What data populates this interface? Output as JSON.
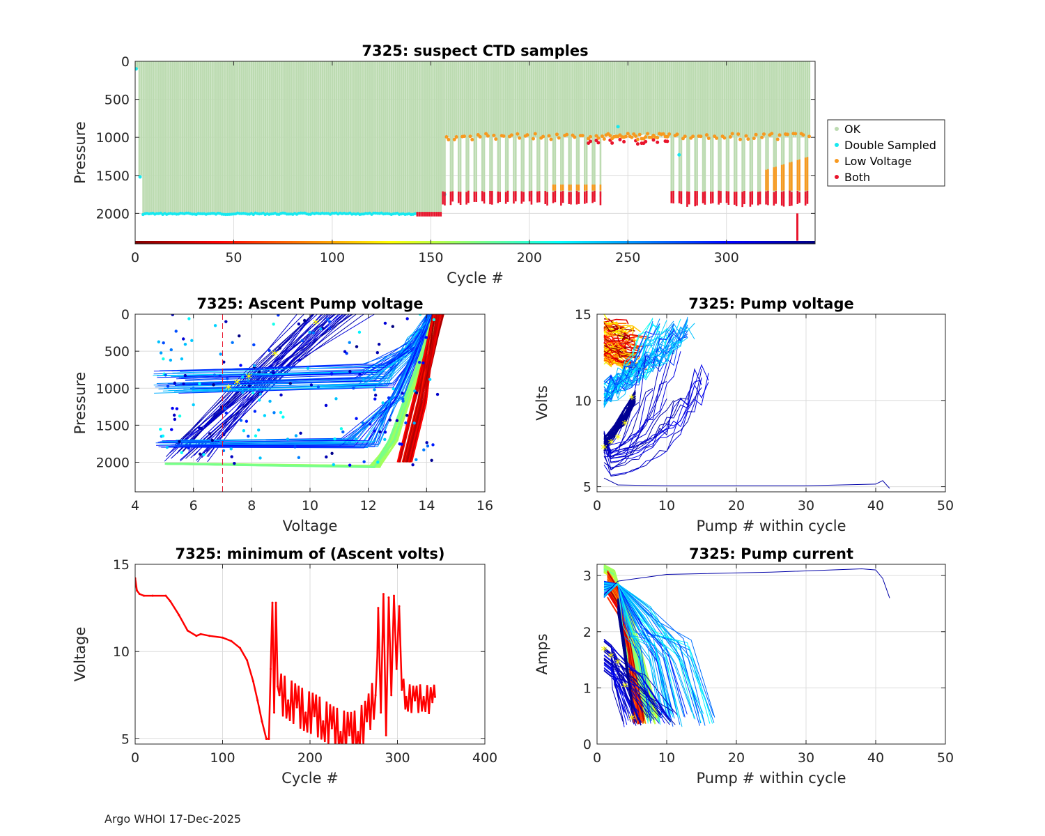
{
  "footer": "Argo WHOI 17-Dec-2025",
  "chart_data": [
    {
      "type": "scatter",
      "title": "7325: suspect CTD samples",
      "xlabel": "Cycle #",
      "ylabel": "Pressure",
      "xlim": [
        0,
        345
      ],
      "ylim": [
        2400,
        0
      ],
      "xticks": [
        0,
        50,
        100,
        150,
        200,
        250,
        300
      ],
      "yticks": [
        0,
        500,
        1000,
        1500,
        2000
      ],
      "legend": {
        "placement": "right",
        "entries": [
          "OK",
          "Double Sampled",
          "Low Voltage",
          "Both"
        ]
      },
      "colors": {
        "ok": "#bcdbb1",
        "double_sampled": "#18e8ef",
        "low_voltage": "#f7991f",
        "both": "#e8142c"
      },
      "profile_depth_segments": [
        {
          "cycles": [
            0,
            155
          ],
          "max_pressure": 2000,
          "bottom_flag": "Double Sampled"
        },
        {
          "cycles": [
            143,
            155
          ],
          "max_pressure": 2010,
          "bottom_flag": "Both"
        },
        {
          "cycles": [
            156,
            236
          ],
          "max_pressure": 1780,
          "bottom_flag": "Both",
          "low_voltage_top": 1000
        },
        {
          "cycles": [
            237,
            269
          ],
          "max_pressure": 1000,
          "bottom_flag": "Both",
          "low_voltage_top": 900
        },
        {
          "cycles": [
            270,
            342
          ],
          "max_pressure": 1800,
          "bottom_flag": "Both",
          "low_voltage_top": 1050
        }
      ],
      "color_bar": "jet colormap by cycle #"
    },
    {
      "type": "line",
      "title": "7325: Ascent Pump voltage",
      "xlabel": "Voltage",
      "ylabel": "Pressure",
      "xlim": [
        4,
        16
      ],
      "ylim": [
        2400,
        0
      ],
      "xticks": [
        4,
        6,
        8,
        10,
        12,
        14,
        16
      ],
      "yticks": [
        0,
        500,
        1000,
        1500,
        2000
      ],
      "reference_line": {
        "x": 7,
        "style": "dashed",
        "color": "#e8142c"
      },
      "series_families": [
        {
          "name": "early cycles",
          "start": [
            14.3,
            0
          ],
          "end": [
            13.2,
            2000
          ]
        },
        {
          "name": "green cycles",
          "path": [
            [
              5,
              2020
            ],
            [
              12,
              2060
            ],
            [
              12.8,
              1700
            ],
            [
              14.3,
              0
            ]
          ]
        },
        {
          "name": "blue 1000m",
          "path": [
            [
              4.6,
              1050
            ],
            [
              11,
              800
            ],
            [
              12.5,
              700
            ],
            [
              14.2,
              0
            ]
          ]
        },
        {
          "name": "blue 1700m",
          "path": [
            [
              4.8,
              1720
            ],
            [
              12,
              1750
            ],
            [
              13,
              1200
            ],
            [
              14.2,
              0
            ]
          ]
        },
        {
          "name": "dark navy",
          "path": [
            [
              5,
              1950
            ],
            [
              8.5,
              800
            ],
            [
              10.5,
              0
            ]
          ]
        }
      ]
    },
    {
      "type": "line",
      "title": "7325: Pump voltage",
      "xlabel": "Pump # within cycle",
      "ylabel": "Volts",
      "xlim": [
        0,
        50
      ],
      "ylim": [
        4.7,
        15
      ],
      "xticks": [
        0,
        10,
        20,
        30,
        40,
        50
      ],
      "yticks": [
        5,
        10,
        15
      ],
      "long_trace": [
        [
          1,
          5.5
        ],
        [
          3,
          5.1
        ],
        [
          10,
          5.05
        ],
        [
          30,
          5.05
        ],
        [
          40,
          5.15
        ],
        [
          41,
          5.35
        ],
        [
          42,
          4.9
        ]
      ]
    },
    {
      "type": "line",
      "title": "7325: minimum of (Ascent volts)",
      "xlabel": "Cycle #",
      "ylabel": "Voltage",
      "xlim": [
        0,
        400
      ],
      "ylim": [
        4.7,
        15
      ],
      "xticks": [
        0,
        100,
        200,
        300,
        400
      ],
      "yticks": [
        5,
        10,
        15
      ],
      "x": [
        0,
        2,
        5,
        10,
        20,
        35,
        40,
        50,
        60,
        70,
        75,
        85,
        100,
        110,
        120,
        128,
        135,
        140,
        145,
        150,
        153,
        155,
        157,
        159,
        161,
        163,
        165,
        175,
        185,
        195,
        205,
        215,
        225,
        235,
        245,
        255,
        265,
        275,
        278,
        281,
        284,
        287,
        290,
        293,
        296,
        299,
        302,
        305,
        310,
        320,
        330,
        340,
        343
      ],
      "values": [
        14.2,
        13.5,
        13.3,
        13.2,
        13.2,
        13.2,
        12.9,
        12.1,
        11.2,
        10.9,
        11.0,
        10.9,
        10.8,
        10.6,
        10.2,
        9.5,
        8.3,
        7.2,
        6.0,
        5.0,
        5.0,
        9.0,
        12.8,
        6.5,
        12.8,
        8.0,
        7.5,
        7.2,
        6.8,
        6.5,
        6.3,
        6.0,
        5.6,
        5.4,
        5.2,
        5.4,
        6.0,
        7.5,
        12.5,
        6.5,
        13.3,
        5.2,
        13.1,
        7.5,
        13.2,
        9.0,
        12.6,
        7.8,
        7.4,
        7.2,
        7.4,
        7.1,
        7.4
      ],
      "color": "#ff0000"
    },
    {
      "type": "line",
      "title": "7325: Pump current",
      "xlabel": "Pump # within cycle",
      "ylabel": "Amps",
      "xlim": [
        0,
        50
      ],
      "ylim": [
        0,
        3.2
      ],
      "xticks": [
        0,
        10,
        20,
        30,
        40,
        50
      ],
      "yticks": [
        0,
        1,
        2,
        3
      ],
      "long_trace": [
        [
          1,
          2.65
        ],
        [
          3,
          2.9
        ],
        [
          10,
          3.02
        ],
        [
          25,
          3.06
        ],
        [
          38,
          3.12
        ],
        [
          40,
          3.1
        ],
        [
          41,
          2.95
        ],
        [
          42,
          2.6
        ]
      ]
    }
  ]
}
